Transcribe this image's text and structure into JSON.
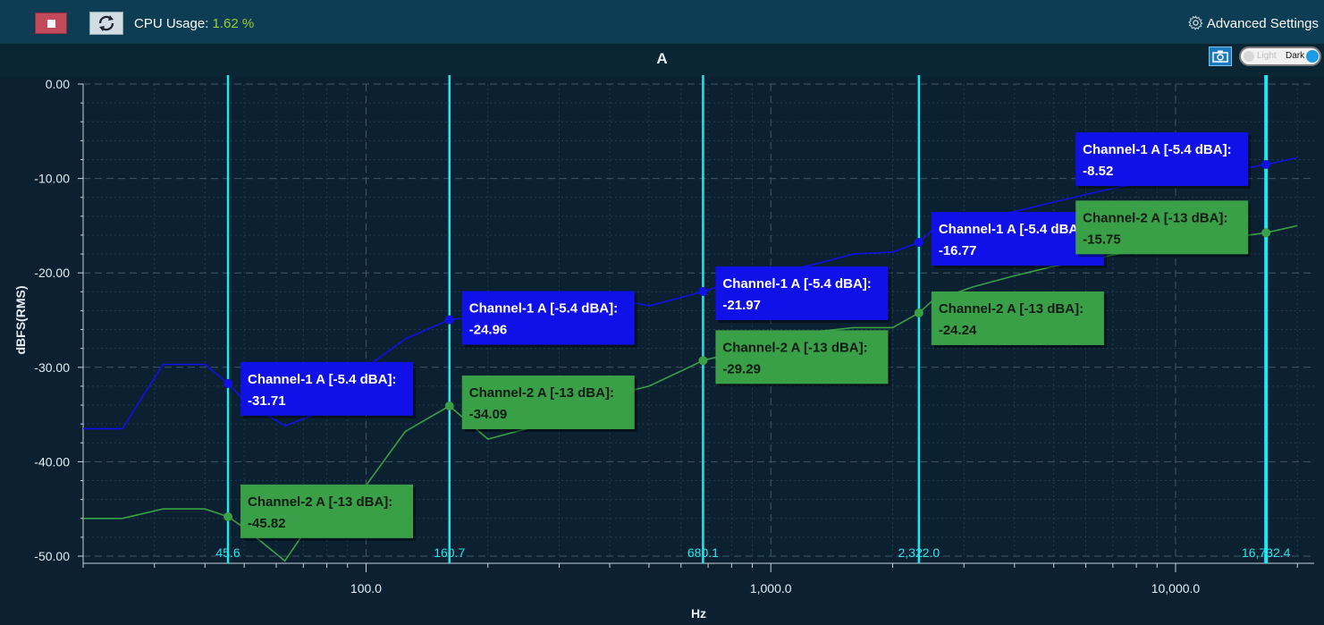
{
  "toolbar": {
    "cpu_label": "CPU Usage:",
    "cpu_value": "1.62",
    "cpu_unit": "%",
    "advanced_settings": "Advanced Settings",
    "stop_icon": "stop-icon",
    "refresh_icon": "refresh-icon",
    "settings_icon": "gear-icon"
  },
  "chart_header": {
    "title": "A",
    "camera_icon": "camera-icon",
    "theme_light": "Light",
    "theme_dark": "Dark"
  },
  "chart_data": {
    "type": "line",
    "title": "A",
    "xlabel": "Hz",
    "ylabel": "dBFS(RMS)",
    "x_scale": "log",
    "xlim": [
      20,
      22000
    ],
    "ylim": [
      -50,
      0
    ],
    "y_ticks": [
      0,
      -10,
      -20,
      -30,
      -40,
      -50
    ],
    "y_tick_labels": [
      "0.00",
      "-10.00",
      "-20.00",
      "-30.00",
      "-40.00",
      "-50.00"
    ],
    "x_ticks": [
      100,
      1000,
      10000
    ],
    "x_tick_labels": [
      "100.0",
      "1,000.0",
      "10,000.0"
    ],
    "grid": true,
    "colors": {
      "channel1": "#1010e8",
      "channel2": "#3aa048",
      "cursor": "#1ee8f0",
      "background": "#0b2030"
    },
    "series": [
      {
        "name": "Channel-1 A [-5.4 dBA]",
        "x": [
          20,
          25,
          31.5,
          40,
          45.6,
          50,
          63,
          80,
          100,
          125,
          160.7,
          200,
          250,
          315,
          400,
          500,
          680.1,
          800,
          1000,
          1250,
          1600,
          2000,
          2322,
          2500,
          3150,
          4000,
          5000,
          6300,
          8000,
          10000,
          12500,
          16732.4,
          20000
        ],
        "values": [
          -36.5,
          -36.5,
          -29.7,
          -29.7,
          -31.71,
          -33.5,
          -36.2,
          -34.5,
          -30.0,
          -27.0,
          -24.96,
          -24.5,
          -24.0,
          -24.5,
          -22.6,
          -23.5,
          -21.97,
          -21.0,
          -20.0,
          -19.2,
          -18.0,
          -17.8,
          -16.77,
          -15.5,
          -14.5,
          -13.5,
          -12.5,
          -11.5,
          -10.5,
          -10.0,
          -9.5,
          -8.52,
          -7.8
        ]
      },
      {
        "name": "Channel-2 A [-13 dBA]",
        "x": [
          20,
          25,
          31.5,
          40,
          45.6,
          50,
          63,
          80,
          100,
          125,
          160.7,
          200,
          250,
          315,
          400,
          500,
          680.1,
          800,
          1000,
          1250,
          1600,
          2000,
          2322,
          2500,
          3150,
          4000,
          5000,
          6300,
          8000,
          10000,
          12500,
          16732.4,
          20000
        ],
        "values": [
          -46.0,
          -46.0,
          -45.0,
          -45.0,
          -45.82,
          -47.0,
          -50.5,
          -44.0,
          -42.5,
          -36.8,
          -34.09,
          -37.6,
          -36.5,
          -34.5,
          -33.0,
          -32.0,
          -29.29,
          -28.5,
          -27.8,
          -26.3,
          -25.8,
          -25.8,
          -24.24,
          -23.0,
          -21.5,
          -20.3,
          -19.3,
          -18.5,
          -17.6,
          -17.0,
          -16.5,
          -15.75,
          -15.0
        ]
      }
    ],
    "cursors": [
      {
        "x": 45.6,
        "label": "45.6",
        "ch1": "-31.71",
        "ch2": "-45.82"
      },
      {
        "x": 160.7,
        "label": "160.7",
        "ch1": "-24.96",
        "ch2": "-34.09"
      },
      {
        "x": 680.1,
        "label": "680.1",
        "ch1": "-21.97",
        "ch2": "-29.29"
      },
      {
        "x": 2322,
        "label": "2,322.0",
        "ch1": "-16.77",
        "ch2": "-24.24"
      },
      {
        "x": 16732.4,
        "label": "16,732.4",
        "ch1": "-8.52",
        "ch2": "-15.75"
      }
    ]
  }
}
